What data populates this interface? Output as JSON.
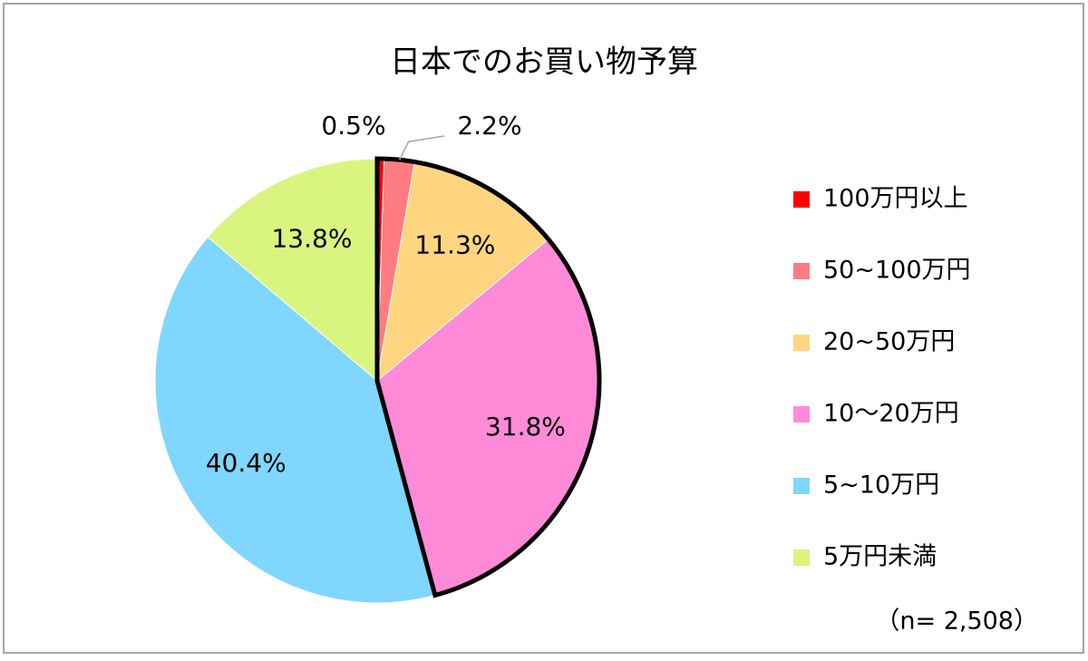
{
  "chart_data": {
    "type": "pie",
    "title": "日本でのお買い物予算",
    "categories": [
      "100万円以上",
      "50~100万円",
      "20~50万円",
      "10～20万円",
      "5~10万円",
      "5万円未満"
    ],
    "values": [
      0.5,
      2.2,
      11.3,
      31.8,
      40.4,
      13.8
    ],
    "value_labels": [
      "0.5%",
      "2.2%",
      "11.3%",
      "31.8%",
      "40.4%",
      "13.8%"
    ],
    "colors": [
      "#ff0000",
      "#ff7c80",
      "#ffd580",
      "#ff8ad8",
      "#7fd6ff",
      "#d9f57f"
    ],
    "outlined": [
      0,
      1,
      2,
      3
    ],
    "legend": "right",
    "annotation": "（n= 2,508）"
  }
}
